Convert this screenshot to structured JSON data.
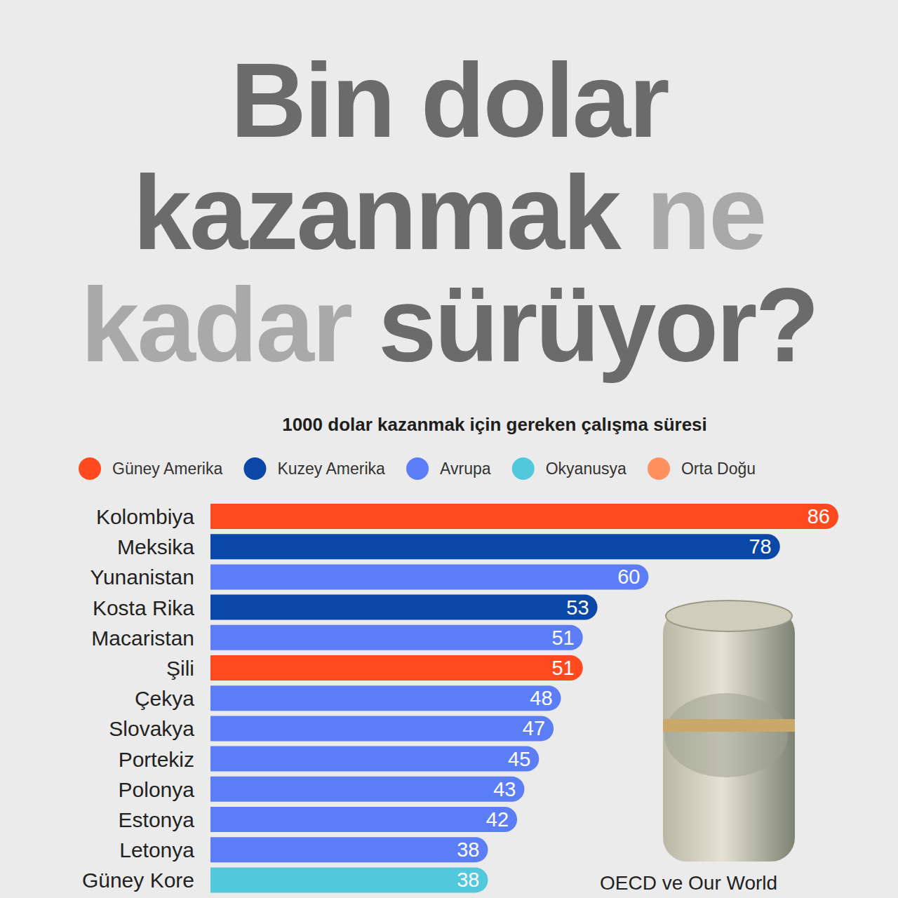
{
  "chart_data": {
    "type": "bar",
    "orientation": "horizontal",
    "title": "Bin dolar kazanmak ne kadar sürüyor?",
    "subtitle": "1000 dolar kazanmak için gereken çalışma süresi",
    "source": "OECD ve Our World",
    "categories": [
      "Kolombiya",
      "Meksika",
      "Yunanistan",
      "Kosta Rika",
      "Macaristan",
      "Şili",
      "Çekya",
      "Slovakya",
      "Portekiz",
      "Polonya",
      "Estonya",
      "Letonya",
      "Güney Kore"
    ],
    "series": [
      {
        "name": "Güney Amerika",
        "color": "#ff4a1f",
        "values": [
          86,
          null,
          null,
          null,
          null,
          51,
          null,
          null,
          null,
          null,
          null,
          null,
          null
        ]
      },
      {
        "name": "Kuzey Amerika",
        "color": "#0a48a8",
        "values": [
          null,
          78,
          null,
          53,
          null,
          null,
          null,
          null,
          null,
          null,
          null,
          null,
          null
        ]
      },
      {
        "name": "Avrupa",
        "color": "#5b7ef7",
        "values": [
          null,
          null,
          60,
          null,
          51,
          null,
          48,
          47,
          45,
          43,
          42,
          38,
          null
        ]
      },
      {
        "name": "Okyanusya",
        "color": "#52c8dc",
        "values": [
          null,
          null,
          null,
          null,
          null,
          null,
          null,
          null,
          null,
          null,
          null,
          null,
          38
        ]
      },
      {
        "name": "Orta Doğu",
        "color": "#ff9060",
        "values": [
          null,
          null,
          null,
          null,
          null,
          null,
          null,
          null,
          null,
          null,
          null,
          null,
          null
        ]
      }
    ],
    "stacked": true,
    "data_labels": true,
    "legend": "top",
    "tick_labels": "y"
  }
}
